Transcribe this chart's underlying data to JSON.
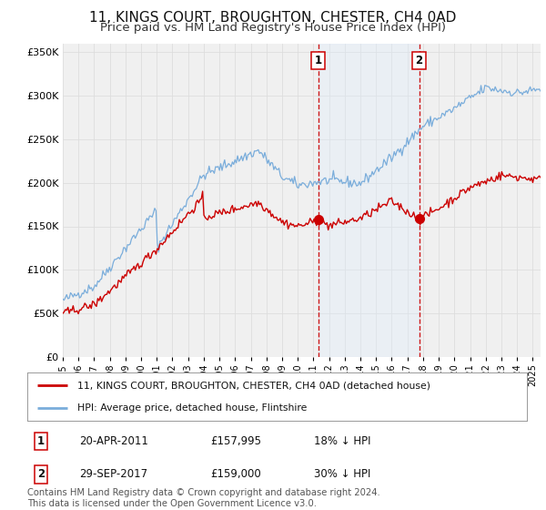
{
  "title": "11, KINGS COURT, BROUGHTON, CHESTER, CH4 0AD",
  "subtitle": "Price paid vs. HM Land Registry's House Price Index (HPI)",
  "title_fontsize": 11,
  "subtitle_fontsize": 9.5,
  "ylabel_ticks": [
    "£0",
    "£50K",
    "£100K",
    "£150K",
    "£200K",
    "£250K",
    "£300K",
    "£350K"
  ],
  "ytick_values": [
    0,
    50000,
    100000,
    150000,
    200000,
    250000,
    300000,
    350000
  ],
  "ylim": [
    0,
    360000
  ],
  "xlim_start": 1995.0,
  "xlim_end": 2025.5,
  "red_line_color": "#cc0000",
  "blue_line_color": "#7aaddb",
  "bg_color": "#ffffff",
  "plot_bg_color": "#f0f0f0",
  "shade_color": "#ddeeff",
  "grid_color": "#dddddd",
  "purchase1_x": 2011.3,
  "purchase1_y": 157995,
  "purchase1_label": "1",
  "purchase2_x": 2017.75,
  "purchase2_y": 159000,
  "purchase2_label": "2",
  "legend_line1": "11, KINGS COURT, BROUGHTON, CHESTER, CH4 0AD (detached house)",
  "legend_line2": "HPI: Average price, detached house, Flintshire",
  "table_row1": [
    "1",
    "20-APR-2011",
    "£157,995",
    "18% ↓ HPI"
  ],
  "table_row2": [
    "2",
    "29-SEP-2017",
    "£159,000",
    "30% ↓ HPI"
  ],
  "footnote": "Contains HM Land Registry data © Crown copyright and database right 2024.\nThis data is licensed under the Open Government Licence v3.0.",
  "font_family": "DejaVu Sans"
}
